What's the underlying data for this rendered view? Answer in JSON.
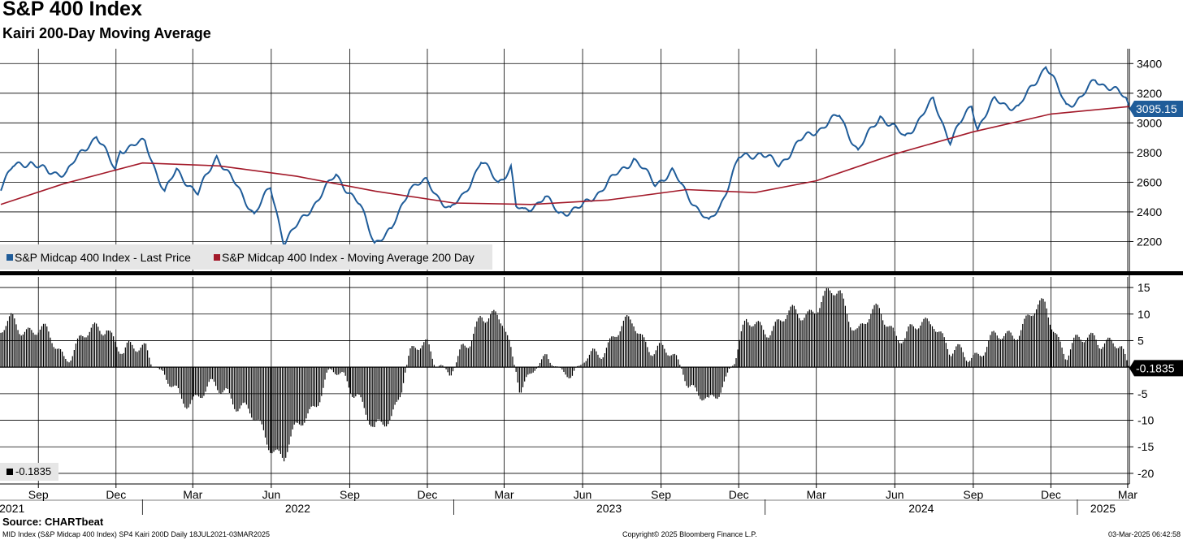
{
  "header": {
    "title": "S&P 400 Index",
    "subtitle": "Kairi 200-Day Moving Average"
  },
  "footer": {
    "source": "Source: CHARTbeat",
    "info_left": "MID Index (S&P Midcap 400 Index) SP4 Kairi 200D  Daily 18JUL2021-03MAR2025",
    "copyright": "Copyright© 2025 Bloomberg Finance L.P.",
    "timestamp": "03-Mar-2025 06:42:58"
  },
  "colors": {
    "price": "#1f5c99",
    "ma": "#a31a2a",
    "bars": "#000000",
    "grid": "#000000",
    "last_badge_price": "#1f5c99",
    "last_badge_kairi": "#000000"
  },
  "chart_data": [
    {
      "type": "line",
      "panel": "top",
      "x_range": [
        "2021-07-18",
        "2025-03-03"
      ],
      "ylim": [
        2000,
        3500
      ],
      "yticks": [
        2200,
        2400,
        2600,
        2800,
        3000,
        3200,
        3400
      ],
      "grid": true,
      "legend_position": "bottom-left",
      "last_value_label": "3095.15",
      "series": [
        {
          "name": "S&P Midcap 400 Index - Last Price",
          "points": [
            [
              "2021-07-19",
              2570
            ],
            [
              "2021-08-02",
              2700
            ],
            [
              "2021-08-23",
              2740
            ],
            [
              "2021-09-13",
              2660
            ],
            [
              "2021-10-04",
              2670
            ],
            [
              "2021-11-08",
              2920
            ],
            [
              "2021-11-30",
              2680
            ],
            [
              "2021-12-06",
              2820
            ],
            [
              "2022-01-04",
              2870
            ],
            [
              "2022-01-27",
              2530
            ],
            [
              "2022-02-10",
              2680
            ],
            [
              "2022-03-07",
              2520
            ],
            [
              "2022-03-29",
              2780
            ],
            [
              "2022-04-28",
              2510
            ],
            [
              "2022-05-12",
              2390
            ],
            [
              "2022-05-31",
              2560
            ],
            [
              "2022-06-16",
              2200
            ],
            [
              "2022-07-05",
              2330
            ],
            [
              "2022-08-16",
              2650
            ],
            [
              "2022-09-13",
              2440
            ],
            [
              "2022-09-30",
              2200
            ],
            [
              "2022-10-20",
              2270
            ],
            [
              "2022-11-10",
              2570
            ],
            [
              "2022-11-30",
              2600
            ],
            [
              "2022-12-28",
              2410
            ],
            [
              "2023-01-12",
              2510
            ],
            [
              "2023-02-02",
              2740
            ],
            [
              "2023-02-22",
              2600
            ],
            [
              "2023-03-09",
              2700
            ],
            [
              "2023-03-15",
              2430
            ],
            [
              "2023-03-24",
              2400
            ],
            [
              "2023-04-18",
              2500
            ],
            [
              "2023-05-04",
              2390
            ],
            [
              "2023-05-31",
              2430
            ],
            [
              "2023-06-15",
              2510
            ],
            [
              "2023-07-31",
              2760
            ],
            [
              "2023-08-25",
              2590
            ],
            [
              "2023-09-14",
              2670
            ],
            [
              "2023-10-02",
              2520
            ],
            [
              "2023-10-27",
              2320
            ],
            [
              "2023-11-09",
              2440
            ],
            [
              "2023-12-01",
              2760
            ],
            [
              "2023-12-27",
              2800
            ],
            [
              "2024-01-17",
              2710
            ],
            [
              "2024-02-09",
              2870
            ],
            [
              "2024-03-28",
              3050
            ],
            [
              "2024-04-19",
              2810
            ],
            [
              "2024-05-15",
              3050
            ],
            [
              "2024-06-13",
              2900
            ],
            [
              "2024-07-16",
              3150
            ],
            [
              "2024-08-05",
              2880
            ],
            [
              "2024-08-30",
              3120
            ],
            [
              "2024-09-06",
              2970
            ],
            [
              "2024-09-26",
              3150
            ],
            [
              "2024-10-24",
              3100
            ],
            [
              "2024-11-25",
              3390
            ],
            [
              "2024-12-19",
              3120
            ],
            [
              "2025-01-06",
              3170
            ],
            [
              "2025-01-22",
              3290
            ],
            [
              "2025-02-12",
              3230
            ],
            [
              "2025-02-27",
              3160
            ],
            [
              "2025-03-03",
              3095.15
            ]
          ]
        },
        {
          "name": "S&P Midcap 400 Index - Moving Average 200 Day",
          "points": [
            [
              "2021-07-19",
              2450
            ],
            [
              "2021-10-01",
              2590
            ],
            [
              "2022-01-01",
              2730
            ],
            [
              "2022-04-01",
              2710
            ],
            [
              "2022-07-01",
              2640
            ],
            [
              "2022-10-01",
              2540
            ],
            [
              "2023-01-01",
              2460
            ],
            [
              "2023-04-01",
              2450
            ],
            [
              "2023-07-01",
              2480
            ],
            [
              "2023-10-01",
              2550
            ],
            [
              "2023-12-20",
              2530
            ],
            [
              "2024-03-01",
              2610
            ],
            [
              "2024-06-01",
              2790
            ],
            [
              "2024-09-01",
              2940
            ],
            [
              "2024-12-01",
              3060
            ],
            [
              "2025-03-03",
              3110
            ]
          ]
        }
      ]
    },
    {
      "type": "bar",
      "panel": "bottom",
      "x_range": [
        "2021-07-18",
        "2025-03-03"
      ],
      "ylim": [
        -22,
        17
      ],
      "yticks": [
        15,
        10,
        5,
        0,
        -5,
        -10,
        -15,
        -20
      ],
      "grid": true,
      "legend_position": "bottom-left",
      "last_value_label": "-0.1835",
      "series": [
        {
          "name": "-0.1835",
          "points": [
            [
              "2021-07-19",
              6
            ],
            [
              "2021-08-01",
              8.5
            ],
            [
              "2021-09-01",
              7
            ],
            [
              "2021-10-01",
              2.5
            ],
            [
              "2021-11-01",
              6
            ],
            [
              "2021-11-20",
              8.5
            ],
            [
              "2021-12-10",
              2
            ],
            [
              "2022-01-05",
              4.5
            ],
            [
              "2022-01-28",
              -3
            ],
            [
              "2022-02-15",
              -6
            ],
            [
              "2022-03-10",
              -5
            ],
            [
              "2022-04-10",
              -4
            ],
            [
              "2022-05-10",
              -10
            ],
            [
              "2022-06-16",
              -17
            ],
            [
              "2022-07-05",
              -11
            ],
            [
              "2022-08-10",
              -1
            ],
            [
              "2022-09-10",
              -4
            ],
            [
              "2022-09-30",
              -13
            ],
            [
              "2022-10-20",
              -9
            ],
            [
              "2022-11-10",
              2
            ],
            [
              "2022-12-01",
              4
            ],
            [
              "2022-12-28",
              -1.5
            ],
            [
              "2023-01-20",
              5
            ],
            [
              "2023-02-02",
              11
            ],
            [
              "2023-02-28",
              7.5
            ],
            [
              "2023-03-20",
              -3
            ],
            [
              "2023-04-20",
              1.5
            ],
            [
              "2023-05-20",
              -1.5
            ],
            [
              "2023-06-20",
              3.5
            ],
            [
              "2023-07-31",
              8.5
            ],
            [
              "2023-08-25",
              3
            ],
            [
              "2023-09-20",
              1.5
            ],
            [
              "2023-10-05",
              -3
            ],
            [
              "2023-10-27",
              -8
            ],
            [
              "2023-11-15",
              -2
            ],
            [
              "2023-12-10",
              7.5
            ],
            [
              "2024-01-10",
              8
            ],
            [
              "2024-02-10",
              10
            ],
            [
              "2024-03-28",
              14
            ],
            [
              "2024-04-19",
              7
            ],
            [
              "2024-05-15",
              10.5
            ],
            [
              "2024-06-13",
              5
            ],
            [
              "2024-07-16",
              10
            ],
            [
              "2024-08-05",
              2
            ],
            [
              "2024-09-06",
              3
            ],
            [
              "2024-10-10",
              6
            ],
            [
              "2024-11-25",
              11.5
            ],
            [
              "2024-12-19",
              2.5
            ],
            [
              "2025-01-22",
              6.5
            ],
            [
              "2025-02-20",
              3
            ],
            [
              "2025-03-03",
              -0.1835
            ]
          ]
        }
      ]
    }
  ],
  "x_axis": {
    "month_ticks": [
      {
        "date": "2021-09-01",
        "label": "Sep"
      },
      {
        "date": "2021-12-01",
        "label": "Dec"
      },
      {
        "date": "2022-03-01",
        "label": "Mar"
      },
      {
        "date": "2022-06-01",
        "label": "Jun"
      },
      {
        "date": "2022-09-01",
        "label": "Sep"
      },
      {
        "date": "2022-12-01",
        "label": "Dec"
      },
      {
        "date": "2023-03-01",
        "label": "Mar"
      },
      {
        "date": "2023-06-01",
        "label": "Jun"
      },
      {
        "date": "2023-09-01",
        "label": "Sep"
      },
      {
        "date": "2023-12-01",
        "label": "Dec"
      },
      {
        "date": "2024-03-01",
        "label": "Mar"
      },
      {
        "date": "2024-06-01",
        "label": "Jun"
      },
      {
        "date": "2024-09-01",
        "label": "Sep"
      },
      {
        "date": "2024-12-01",
        "label": "Dec"
      },
      {
        "date": "2025-03-01",
        "label": "Mar"
      }
    ],
    "year_labels": [
      {
        "date": "2021-08-01",
        "label": "2021"
      },
      {
        "date": "2022-07-02",
        "label": "2022"
      },
      {
        "date": "2023-07-02",
        "label": "2023"
      },
      {
        "date": "2024-07-02",
        "label": "2024"
      },
      {
        "date": "2025-01-31",
        "label": "2025"
      }
    ],
    "year_boundaries": [
      "2022-01-01",
      "2023-01-01",
      "2024-01-01",
      "2025-01-01"
    ]
  }
}
